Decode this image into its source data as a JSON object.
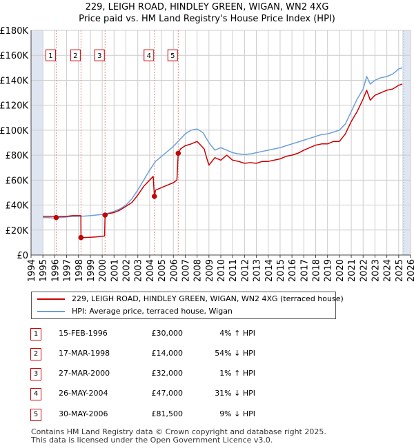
{
  "title_line1": "229, LEIGH ROAD, HINDLEY GREEN, WIGAN, WN2 4XG",
  "title_line2": "Price paid vs. HM Land Registry's House Price Index (HPI)",
  "colors": {
    "property": "#cc0000",
    "hpi": "#6a9fd8",
    "band": "#dfe6f2",
    "grid": "#cccccc",
    "marker_line": "#e88888"
  },
  "chart_data": {
    "type": "line",
    "title": "Price paid vs. HM Land Registry's House Price Index (HPI)",
    "xlabel": "",
    "ylabel": "",
    "xlim": [
      1994,
      2026
    ],
    "ylim": [
      0,
      180000
    ],
    "x_ticks": [
      "1994",
      "1995",
      "1996",
      "1997",
      "1998",
      "1999",
      "2000",
      "2001",
      "2002",
      "2003",
      "2004",
      "2005",
      "2006",
      "2007",
      "2008",
      "2009",
      "2010",
      "2011",
      "2012",
      "2013",
      "2014",
      "2015",
      "2016",
      "2017",
      "2018",
      "2019",
      "2020",
      "2021",
      "2022",
      "2023",
      "2024",
      "2025",
      "2026"
    ],
    "y_ticks": [
      {
        "value": 0,
        "label": "£0"
      },
      {
        "value": 20000,
        "label": "£20K"
      },
      {
        "value": 40000,
        "label": "£40K"
      },
      {
        "value": 60000,
        "label": "£60K"
      },
      {
        "value": 80000,
        "label": "£80K"
      },
      {
        "value": 100000,
        "label": "£100K"
      },
      {
        "value": 120000,
        "label": "£120K"
      },
      {
        "value": 140000,
        "label": "£140K"
      },
      {
        "value": 160000,
        "label": "£160K"
      },
      {
        "value": 180000,
        "label": "£180K"
      }
    ],
    "grid": true,
    "shaded_periods": [
      [
        1994,
        1995
      ],
      [
        2025.3,
        2026
      ]
    ],
    "series": [
      {
        "name": "229, LEIGH ROAD, HINDLEY GREEN, WIGAN, WN2 4XG (terraced house)",
        "color": "#cc0000",
        "x": [
          1995.0,
          1995.5,
          1996.0,
          1996.12,
          1996.5,
          1997.0,
          1997.5,
          1998.0,
          1998.2,
          1998.21,
          1998.5,
          1999.0,
          1999.5,
          2000.0,
          2000.2,
          2000.24,
          2000.5,
          2001.0,
          2001.5,
          2002.0,
          2002.5,
          2003.0,
          2003.5,
          2004.0,
          2004.3,
          2004.4,
          2004.5,
          2005.0,
          2005.5,
          2006.0,
          2006.3,
          2006.41,
          2006.6,
          2007.0,
          2007.5,
          2008.0,
          2008.3,
          2008.6,
          2008.8,
          2009.0,
          2009.5,
          2010.0,
          2010.5,
          2011.0,
          2011.5,
          2012.0,
          2012.5,
          2013.0,
          2013.5,
          2014.0,
          2014.5,
          2015.0,
          2015.5,
          2016.0,
          2016.5,
          2017.0,
          2017.5,
          2018.0,
          2018.5,
          2019.0,
          2019.5,
          2020.0,
          2020.5,
          2021.0,
          2021.5,
          2022.0,
          2022.3,
          2022.6,
          2023.0,
          2023.5,
          2024.0,
          2024.5,
          2025.0,
          2025.3
        ],
        "y": [
          31000,
          31000,
          31000,
          30000,
          31000,
          31000,
          31500,
          31500,
          31500,
          14000,
          14000,
          14200,
          14500,
          15000,
          15200,
          32000,
          33000,
          34000,
          36000,
          39000,
          42000,
          48000,
          55000,
          60000,
          63000,
          47000,
          52000,
          54000,
          56000,
          58000,
          60000,
          81500,
          85000,
          87500,
          89000,
          91000,
          88000,
          85000,
          78000,
          72000,
          78000,
          76000,
          80000,
          76000,
          75000,
          73500,
          74000,
          73500,
          75000,
          75000,
          76000,
          77000,
          79000,
          80000,
          81500,
          84000,
          86000,
          88000,
          89000,
          89000,
          91000,
          91000,
          97000,
          107000,
          115000,
          125000,
          132000,
          124000,
          128000,
          130000,
          132000,
          133000,
          136000,
          137000
        ]
      },
      {
        "name": "HPI: Average price, terraced house, Wigan",
        "color": "#6a9fd8",
        "x": [
          1995.0,
          1995.5,
          1996.0,
          1996.5,
          1997.0,
          1997.5,
          1998.0,
          1998.5,
          1999.0,
          1999.5,
          2000.0,
          2000.5,
          2001.0,
          2001.5,
          2002.0,
          2002.5,
          2003.0,
          2003.5,
          2004.0,
          2004.5,
          2005.0,
          2005.5,
          2006.0,
          2006.5,
          2007.0,
          2007.5,
          2008.0,
          2008.5,
          2009.0,
          2009.5,
          2010.0,
          2010.5,
          2011.0,
          2011.5,
          2012.0,
          2012.5,
          2013.0,
          2013.5,
          2014.0,
          2014.5,
          2015.0,
          2015.5,
          2016.0,
          2016.5,
          2017.0,
          2017.5,
          2018.0,
          2018.5,
          2019.0,
          2019.5,
          2020.0,
          2020.5,
          2021.0,
          2021.5,
          2022.0,
          2022.3,
          2022.6,
          2023.0,
          2023.5,
          2024.0,
          2024.5,
          2025.0,
          2025.3
        ],
        "y": [
          30000,
          30000,
          29500,
          30000,
          30500,
          31000,
          31000,
          31200,
          31500,
          32000,
          32500,
          33500,
          35000,
          37000,
          40000,
          45000,
          52000,
          60000,
          68000,
          75000,
          79000,
          83000,
          87000,
          92000,
          97000,
          100000,
          101000,
          98000,
          90000,
          84000,
          86000,
          84000,
          82000,
          81000,
          80500,
          81000,
          82000,
          83000,
          84000,
          85000,
          86000,
          87500,
          89000,
          90500,
          92000,
          93500,
          95000,
          96500,
          97000,
          98500,
          100000,
          105000,
          115000,
          125000,
          133000,
          143000,
          137000,
          140000,
          142000,
          143000,
          145000,
          149000,
          150000
        ]
      }
    ],
    "sales": [
      {
        "id": "1",
        "x": 1996.12,
        "value": 30000
      },
      {
        "id": "2",
        "x": 1998.21,
        "value": 14000
      },
      {
        "id": "3",
        "x": 2000.24,
        "value": 32000
      },
      {
        "id": "4",
        "x": 2004.4,
        "value": 47000
      },
      {
        "id": "5",
        "x": 2006.41,
        "value": 81500
      }
    ],
    "marker_label_value": 160000
  },
  "legend": {
    "property_label": "229, LEIGH ROAD, HINDLEY GREEN, WIGAN, WN2 4XG (terraced house)",
    "hpi_label": "HPI: Average price, terraced house, Wigan"
  },
  "sales_table": [
    {
      "num": "1",
      "date": "15-FEB-1996",
      "price": "£30,000",
      "hpi": "4% ↑ HPI"
    },
    {
      "num": "2",
      "date": "17-MAR-1998",
      "price": "£14,000",
      "hpi": "54% ↓ HPI"
    },
    {
      "num": "3",
      "date": "27-MAR-2000",
      "price": "£32,000",
      "hpi": "1% ↑ HPI"
    },
    {
      "num": "4",
      "date": "26-MAY-2004",
      "price": "£47,000",
      "hpi": "31% ↓ HPI"
    },
    {
      "num": "5",
      "date": "30-MAY-2006",
      "price": "£81,500",
      "hpi": "9% ↓ HPI"
    }
  ],
  "footer": {
    "line1": "Contains HM Land Registry data © Crown copyright and database right 2025.",
    "line2": "This data is licensed under the Open Government Licence v3.0."
  }
}
